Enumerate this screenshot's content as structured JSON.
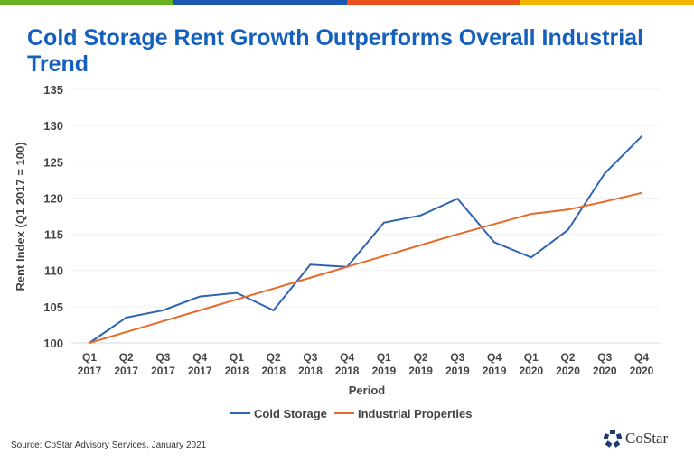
{
  "header": {
    "stripe_colors": [
      "#6ab023",
      "#1a57b5",
      "#e8501c",
      "#f5b400"
    ]
  },
  "chart_data": {
    "type": "line",
    "title": "Cold Storage Rent Growth Outperforms Overall Industrial Trend",
    "xlabel": "Period",
    "ylabel": "Rent Index (Q1 2017 = 100)",
    "ylim": [
      100,
      135
    ],
    "yticks": [
      100,
      105,
      110,
      115,
      120,
      125,
      130,
      135
    ],
    "grid": true,
    "legend": "bottom",
    "categories": [
      [
        "Q1",
        "2017"
      ],
      [
        "Q2",
        "2017"
      ],
      [
        "Q3",
        "2017"
      ],
      [
        "Q4",
        "2017"
      ],
      [
        "Q1",
        "2018"
      ],
      [
        "Q2",
        "2018"
      ],
      [
        "Q3",
        "2018"
      ],
      [
        "Q4",
        "2018"
      ],
      [
        "Q1",
        "2019"
      ],
      [
        "Q2",
        "2019"
      ],
      [
        "Q3",
        "2019"
      ],
      [
        "Q4",
        "2019"
      ],
      [
        "Q1",
        "2020"
      ],
      [
        "Q2",
        "2020"
      ],
      [
        "Q3",
        "2020"
      ],
      [
        "Q4",
        "2020"
      ]
    ],
    "series": [
      {
        "name": "Cold Storage",
        "color": "#2e64b0",
        "values": [
          100,
          103.5,
          104.5,
          106.4,
          106.9,
          104.5,
          110.8,
          110.5,
          116.6,
          117.6,
          119.9,
          113.9,
          111.8,
          115.6,
          123.4,
          128.5
        ]
      },
      {
        "name": "Industrial Properties",
        "color": "#e8692a",
        "values": [
          100,
          101.5,
          103,
          104.5,
          106,
          107.5,
          109,
          110.5,
          112,
          113.5,
          115,
          116.4,
          117.8,
          118.4,
          119.5,
          120.7
        ]
      }
    ]
  },
  "footer": {
    "source": "Source: CoStar Advisory Services, January 2021",
    "logo_text": "CoStar"
  }
}
